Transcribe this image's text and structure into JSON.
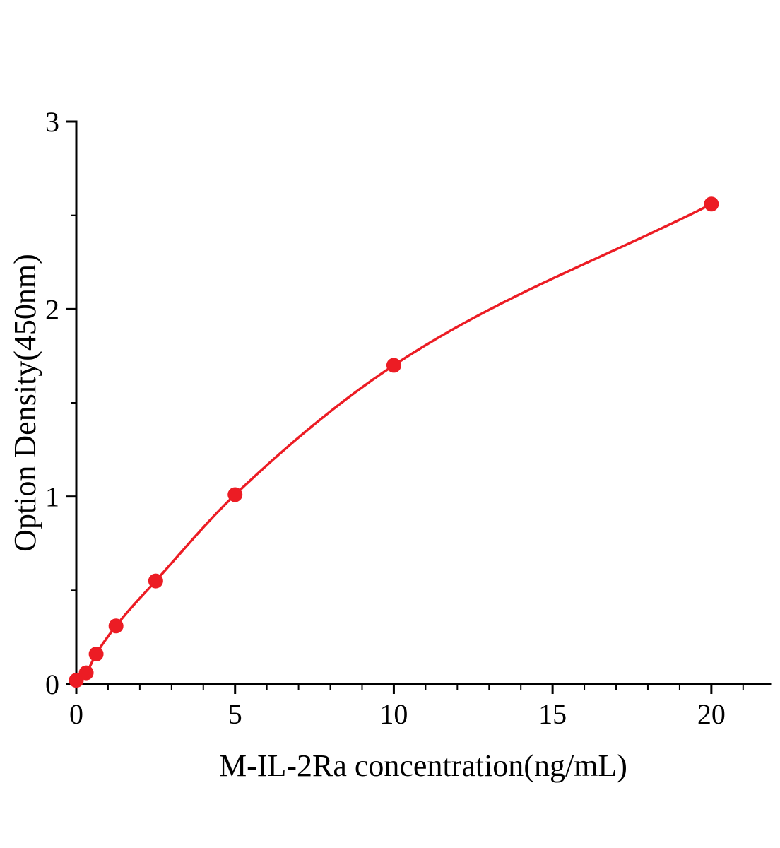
{
  "chart_data": {
    "type": "line",
    "title": "",
    "xlabel": "M-IL-2Ra concentration(ng/mL)",
    "ylabel": "Option Density(450nm)",
    "x": [
      0,
      0.313,
      0.625,
      1.25,
      2.5,
      5,
      10,
      20
    ],
    "y": [
      0.02,
      0.06,
      0.16,
      0.31,
      0.55,
      1.01,
      1.7,
      2.56
    ],
    "xlim": [
      0,
      21.85
    ],
    "ylim": [
      0,
      3
    ],
    "x_major_ticks": [
      0,
      5,
      10,
      15,
      20
    ],
    "y_major_ticks": [
      0,
      1,
      2,
      3
    ],
    "x_minor_step": 1,
    "y_minor_step": 0.5,
    "grid": false,
    "legend": null,
    "line_color": "#ec1c24",
    "marker": "circle",
    "axis_color": "#000000"
  }
}
